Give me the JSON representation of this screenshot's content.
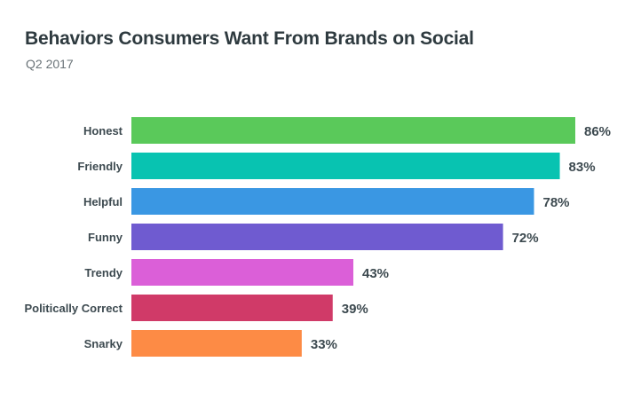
{
  "header": {
    "title": "Behaviors Consumers Want From Brands on Social",
    "subtitle": "Q2 2017"
  },
  "chart_data": {
    "type": "bar",
    "orientation": "horizontal",
    "title": "Behaviors Consumers Want From Brands on Social",
    "subtitle": "Q2 2017",
    "xlabel": "",
    "ylabel": "",
    "categories": [
      "Honest",
      "Friendly",
      "Helpful",
      "Funny",
      "Trendy",
      "Politically Correct",
      "Snarky"
    ],
    "values": [
      86,
      83,
      78,
      72,
      43,
      39,
      33
    ],
    "value_labels": [
      "86%",
      "83%",
      "78%",
      "72%",
      "43%",
      "39%",
      "33%"
    ],
    "colors": [
      "#5ac95a",
      "#08c3b1",
      "#3a97e3",
      "#6f5bd0",
      "#db5fd8",
      "#d03a68",
      "#fd8b45"
    ],
    "xlim": [
      0,
      86
    ],
    "grid": false,
    "legend": "none"
  }
}
